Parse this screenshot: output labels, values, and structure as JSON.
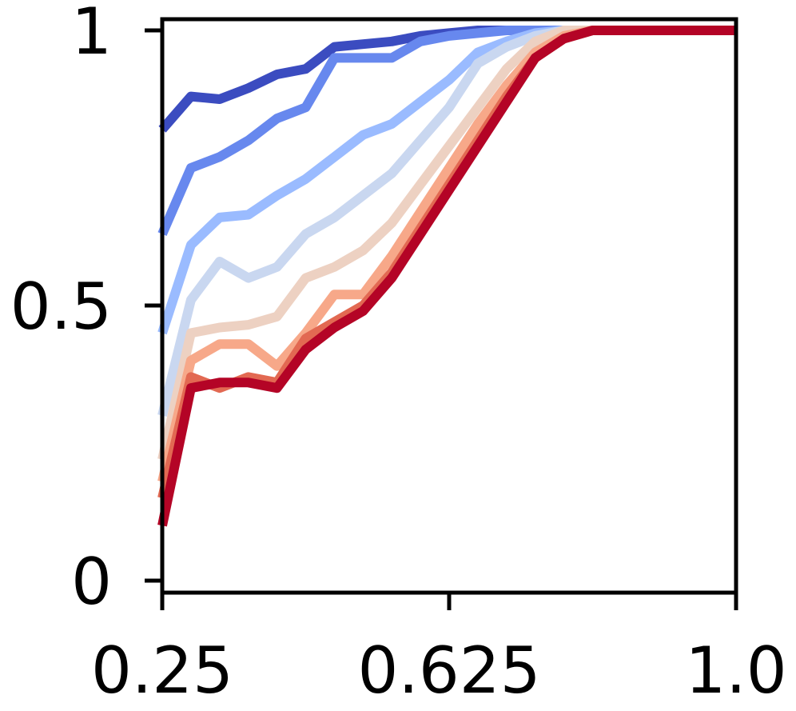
{
  "chart_data": {
    "type": "line",
    "title": "",
    "xlabel": "",
    "ylabel": "",
    "xlim": [
      0.25,
      1.0
    ],
    "ylim": [
      0,
      1
    ],
    "grid": false,
    "legend": "none",
    "x_ticks": [
      {
        "value": 0.25,
        "label": "0.25"
      },
      {
        "value": 0.625,
        "label": "0.625"
      },
      {
        "value": 1.0,
        "label": "1.0"
      }
    ],
    "y_ticks": [
      {
        "value": 0,
        "label": "0"
      },
      {
        "value": 0.5,
        "label": "0.5"
      },
      {
        "value": 1,
        "label": "1"
      }
    ],
    "x": [
      0.25,
      0.2875,
      0.325,
      0.3625,
      0.4,
      0.4375,
      0.475,
      0.5125,
      0.55,
      0.5875,
      0.625,
      0.6625,
      0.7,
      0.7375,
      0.775,
      0.8125,
      0.85,
      0.8875,
      0.925,
      0.9625,
      1.0
    ],
    "series": [
      {
        "color": "#3b4cc0",
        "values": [
          0.82,
          0.88,
          0.875,
          0.895,
          0.92,
          0.93,
          0.97,
          0.975,
          0.98,
          0.99,
          0.995,
          1.0,
          1.0,
          1.0,
          1.0,
          1.0,
          1.0,
          1.0,
          1.0,
          1.0,
          1.0
        ]
      },
      {
        "color": "#6788ee",
        "values": [
          0.63,
          0.75,
          0.77,
          0.8,
          0.84,
          0.86,
          0.95,
          0.95,
          0.95,
          0.98,
          0.99,
          0.995,
          1.0,
          1.0,
          1.0,
          1.0,
          1.0,
          1.0,
          1.0,
          1.0,
          1.0
        ]
      },
      {
        "color": "#9abbff",
        "values": [
          0.45,
          0.61,
          0.66,
          0.665,
          0.7,
          0.73,
          0.77,
          0.81,
          0.83,
          0.87,
          0.91,
          0.96,
          0.98,
          0.995,
          1.0,
          1.0,
          1.0,
          1.0,
          1.0,
          1.0,
          1.0
        ]
      },
      {
        "color": "#c9d7f0",
        "values": [
          0.3,
          0.51,
          0.58,
          0.55,
          0.57,
          0.63,
          0.66,
          0.7,
          0.74,
          0.8,
          0.86,
          0.94,
          0.97,
          0.99,
          1.0,
          1.0,
          1.0,
          1.0,
          1.0,
          1.0,
          1.0
        ]
      },
      {
        "color": "#edd1c2",
        "values": [
          0.22,
          0.45,
          0.46,
          0.465,
          0.48,
          0.55,
          0.57,
          0.6,
          0.65,
          0.72,
          0.79,
          0.86,
          0.93,
          0.98,
          1.0,
          1.0,
          1.0,
          1.0,
          1.0,
          1.0,
          1.0
        ]
      },
      {
        "color": "#f7a889",
        "values": [
          0.18,
          0.4,
          0.43,
          0.43,
          0.39,
          0.45,
          0.52,
          0.52,
          0.59,
          0.67,
          0.75,
          0.83,
          0.9,
          0.96,
          0.99,
          1.0,
          1.0,
          1.0,
          1.0,
          1.0,
          1.0
        ]
      },
      {
        "color": "#e26952",
        "values": [
          0.15,
          0.37,
          0.35,
          0.37,
          0.36,
          0.44,
          0.47,
          0.5,
          0.56,
          0.64,
          0.72,
          0.8,
          0.88,
          0.95,
          0.985,
          1.0,
          1.0,
          1.0,
          1.0,
          1.0,
          1.0
        ]
      },
      {
        "color": "#b40426",
        "values": [
          0.1,
          0.35,
          0.36,
          0.36,
          0.35,
          0.42,
          0.46,
          0.49,
          0.55,
          0.63,
          0.71,
          0.79,
          0.87,
          0.95,
          0.985,
          1.0,
          1.0,
          1.0,
          1.0,
          1.0,
          1.0
        ]
      }
    ]
  }
}
